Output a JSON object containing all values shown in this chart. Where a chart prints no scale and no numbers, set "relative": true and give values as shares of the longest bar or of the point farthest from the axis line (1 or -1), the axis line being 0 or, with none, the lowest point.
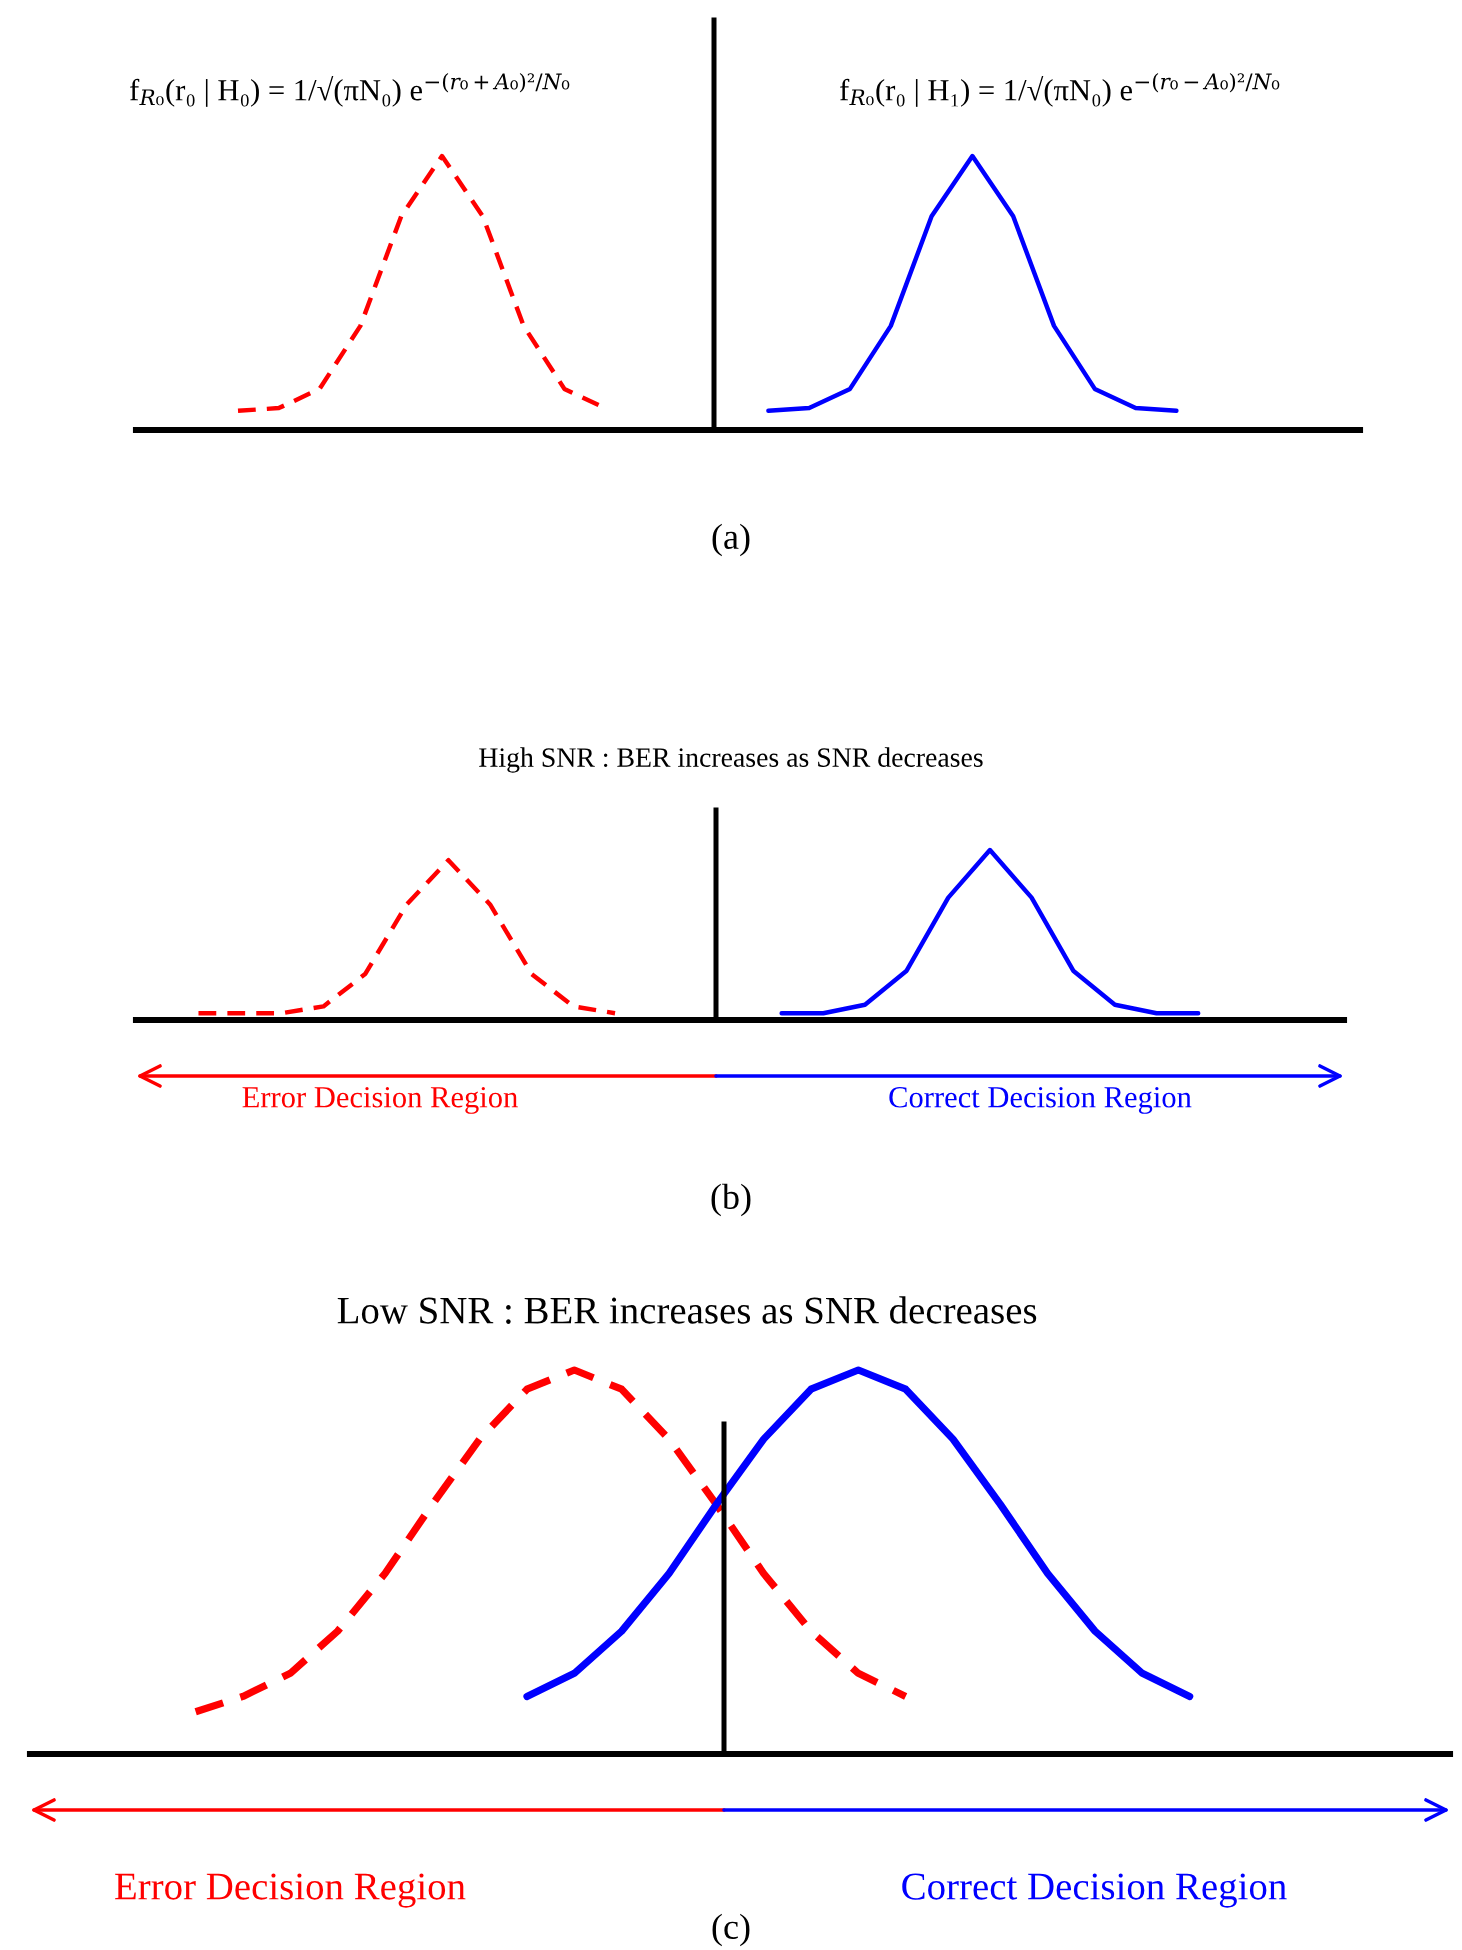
{
  "chart_data": [
    {
      "type": "line",
      "relative": true,
      "legend": false,
      "grid": false,
      "categories": [
        null,
        null,
        null,
        null,
        null,
        null,
        null,
        null,
        null,
        null,
        null,
        null,
        null,
        null,
        null,
        null,
        null,
        null,
        null,
        null,
        null,
        null,
        null,
        null,
        null,
        null,
        null,
        null,
        null,
        null
      ],
      "series": [
        {
          "color": "#ff0000",
          "line_style": "dashed",
          "values": [
            null,
            null,
            0.07,
            0.08,
            0.15,
            0.38,
            0.78,
            1.0,
            0.78,
            0.38,
            0.15,
            0.08,
            null,
            null,
            null,
            null,
            null,
            null,
            null,
            null,
            null,
            null,
            null,
            null,
            null,
            null,
            null,
            null,
            null,
            null
          ]
        },
        {
          "color": "#0000ff",
          "line_style": "solid",
          "values": [
            null,
            null,
            null,
            null,
            null,
            null,
            null,
            null,
            null,
            null,
            null,
            null,
            null,
            null,
            null,
            0.07,
            0.08,
            0.15,
            0.38,
            0.78,
            1.0,
            0.78,
            0.38,
            0.15,
            0.08,
            0.07,
            null,
            null,
            null,
            null
          ]
        }
      ],
      "annotations": [
        "f$_{R₀}$(r₀ | H₀) = 1/√(πN₀) e$^{−(r₀+A₀)²/N₀}$",
        "f$_{R₀}$(r₀ | H₁) = 1/√(πN₀) e$^{−(r₀−A₀)²/N₀}$",
        "(a)"
      ]
    },
    {
      "type": "line",
      "relative": true,
      "legend": false,
      "grid": false,
      "title": "High SNR : BER increases as SNR decreases",
      "categories": [
        null,
        null,
        null,
        null,
        null,
        null,
        null,
        null,
        null,
        null,
        null,
        null,
        null,
        null,
        null,
        null,
        null,
        null,
        null,
        null,
        null,
        null,
        null,
        null,
        null,
        null,
        null,
        null,
        null
      ],
      "series": [
        {
          "color": "#ff0000",
          "line_style": "dashed",
          "values": [
            null,
            0.04,
            0.04,
            0.04,
            0.08,
            0.27,
            0.68,
            0.94,
            0.68,
            0.27,
            0.08,
            0.04,
            null,
            null,
            null,
            null,
            null,
            null,
            null,
            null,
            null,
            null,
            null,
            null,
            null,
            null,
            null,
            null,
            null
          ]
        },
        {
          "color": "#0000ff",
          "line_style": "solid",
          "values": [
            null,
            null,
            null,
            null,
            null,
            null,
            null,
            null,
            null,
            null,
            null,
            null,
            null,
            null,
            null,
            0.04,
            0.04,
            0.09,
            0.29,
            0.72,
            1.0,
            0.72,
            0.29,
            0.09,
            0.04,
            0.04,
            null,
            null,
            null
          ]
        }
      ],
      "annotations": [
        "Error Decision Region",
        "Correct Decision Region",
        "(b)"
      ]
    },
    {
      "type": "line",
      "relative": true,
      "legend": false,
      "grid": false,
      "title": "Low SNR : BER increases as SNR decreases",
      "categories": [
        null,
        null,
        null,
        null,
        null,
        null,
        null,
        null,
        null,
        null,
        null,
        null,
        null,
        null,
        null,
        null,
        null,
        null,
        null,
        null,
        null,
        null,
        null,
        null,
        null,
        null,
        null,
        null,
        null,
        null
      ],
      "series": [
        {
          "color": "#ff0000",
          "line_style": "dashed",
          "values": [
            null,
            null,
            null,
            0.11,
            0.15,
            0.21,
            0.32,
            0.47,
            0.65,
            0.82,
            0.95,
            1.0,
            0.95,
            0.82,
            0.65,
            0.47,
            0.32,
            0.21,
            0.15,
            null,
            null,
            null,
            null,
            null,
            null,
            null,
            null,
            null,
            null,
            null
          ]
        },
        {
          "color": "#0000ff",
          "line_style": "solid",
          "values": [
            null,
            null,
            null,
            null,
            null,
            null,
            null,
            null,
            null,
            null,
            0.15,
            0.21,
            0.32,
            0.47,
            0.65,
            0.82,
            0.95,
            1.0,
            0.95,
            0.82,
            0.65,
            0.47,
            0.32,
            0.21,
            0.15,
            null,
            null,
            null,
            null,
            null
          ]
        }
      ],
      "annotations": [
        "Error Decision Region",
        "Correct Decision Region",
        "(c)"
      ]
    }
  ]
}
